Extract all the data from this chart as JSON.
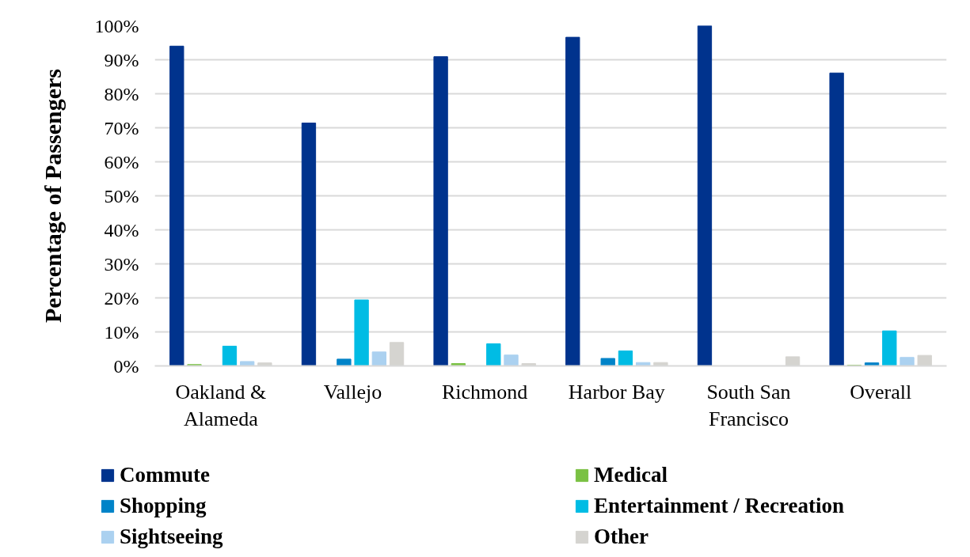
{
  "chart_data": {
    "type": "bar",
    "ylabel": "Percentage of Passengers",
    "categories": [
      "Oakland & Alameda",
      "Vallejo",
      "Richmond",
      "Harbor Bay",
      "South San Francisco",
      "Overall"
    ],
    "series": [
      {
        "name": "Commute",
        "color": "#00338d",
        "values": [
          94.0,
          71.4,
          90.9,
          96.6,
          100,
          86.1
        ]
      },
      {
        "name": "Medical",
        "color": "#7ac143",
        "values": [
          0.4,
          null,
          0.7,
          null,
          null,
          0.2
        ]
      },
      {
        "name": "Shopping",
        "color": "#0083c8",
        "values": [
          null,
          2.0,
          null,
          2.2,
          null,
          0.9
        ]
      },
      {
        "name": "Entertainment / Recreation",
        "color": "#00bce4",
        "values": [
          5.8,
          19.4,
          6.5,
          4.4,
          null,
          10.3
        ]
      },
      {
        "name": "Sightseeing",
        "color": "#abd1f0",
        "values": [
          1.3,
          4.1,
          3.2,
          1.0,
          null,
          2.5
        ]
      },
      {
        "name": "Other",
        "color": "#d5d4d0",
        "values": [
          0.9,
          6.9,
          0.7,
          1.0,
          2.7,
          3.1
        ]
      }
    ],
    "ylim": [
      0,
      100
    ],
    "yticks": [
      {
        "value": 0,
        "label": "0%"
      },
      {
        "value": 10,
        "label": "10%"
      },
      {
        "value": 20,
        "label": "20%"
      },
      {
        "value": 30,
        "label": "30%"
      },
      {
        "value": 40,
        "label": "40%"
      },
      {
        "value": 50,
        "label": "50%"
      },
      {
        "value": 60,
        "label": "60%"
      },
      {
        "value": 70,
        "label": "70%"
      },
      {
        "value": 80,
        "label": "80%"
      },
      {
        "value": 90,
        "label": "90%"
      },
      {
        "value": 100,
        "label": "100%"
      }
    ],
    "grid": "y",
    "legend": "bottom"
  }
}
